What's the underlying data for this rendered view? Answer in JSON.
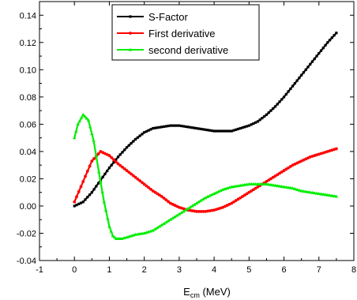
{
  "chart_data": {
    "type": "line",
    "title": "",
    "xlabel": "E",
    "xlabel_sub": "cm",
    "xlabel_unit": " (MeV)",
    "ylabel": "",
    "xlim": [
      -1,
      8
    ],
    "ylim": [
      -0.04,
      0.15
    ],
    "x_ticks": [
      -1,
      0,
      1,
      2,
      3,
      4,
      5,
      6,
      7,
      8
    ],
    "y_ticks": [
      -0.04,
      -0.02,
      0.0,
      0.02,
      0.04,
      0.06,
      0.08,
      0.1,
      0.12,
      0.14
    ],
    "x_tick_labels": [
      "-1",
      "0",
      "1",
      "2",
      "3",
      "4",
      "5",
      "6",
      "7",
      "8"
    ],
    "y_tick_labels": [
      "-0.04",
      "-0.02",
      "0.00",
      "0.02",
      "0.04",
      "0.06",
      "0.08",
      "0.10",
      "0.12",
      "0.14"
    ],
    "grid": false,
    "legend_position": "top-center",
    "series": [
      {
        "name": "S-Factor",
        "color": "#000000",
        "marker": "square",
        "x": [
          0,
          0.25,
          0.5,
          0.75,
          1.0,
          1.25,
          1.5,
          1.75,
          2.0,
          2.25,
          2.5,
          2.75,
          3.0,
          3.25,
          3.5,
          3.75,
          4.0,
          4.25,
          4.5,
          4.75,
          5.0,
          5.25,
          5.5,
          5.75,
          6.0,
          6.25,
          6.5,
          6.75,
          7.0,
          7.25,
          7.5
        ],
        "y": [
          0.0,
          0.003,
          0.01,
          0.019,
          0.028,
          0.036,
          0.043,
          0.049,
          0.054,
          0.057,
          0.058,
          0.059,
          0.059,
          0.058,
          0.057,
          0.056,
          0.055,
          0.055,
          0.055,
          0.057,
          0.059,
          0.062,
          0.067,
          0.073,
          0.08,
          0.088,
          0.096,
          0.104,
          0.112,
          0.12,
          0.127
        ]
      },
      {
        "name": "First derivative",
        "color": "#ff0000",
        "marker": "circle",
        "x": [
          0,
          0.25,
          0.5,
          0.75,
          1.0,
          1.25,
          1.5,
          1.75,
          2.0,
          2.25,
          2.5,
          2.75,
          3.0,
          3.25,
          3.5,
          3.75,
          4.0,
          4.25,
          4.5,
          4.75,
          5.0,
          5.25,
          5.5,
          5.75,
          6.0,
          6.25,
          6.5,
          6.75,
          7.0,
          7.25,
          7.5
        ],
        "y": [
          0.003,
          0.018,
          0.033,
          0.04,
          0.037,
          0.031,
          0.026,
          0.021,
          0.016,
          0.011,
          0.007,
          0.002,
          -0.001,
          -0.003,
          -0.004,
          -0.004,
          -0.003,
          -0.001,
          0.002,
          0.006,
          0.01,
          0.014,
          0.018,
          0.022,
          0.026,
          0.03,
          0.033,
          0.036,
          0.038,
          0.04,
          0.042
        ]
      },
      {
        "name": "second derivative",
        "color": "#00ee00",
        "marker": "triangle",
        "x": [
          0,
          0.1,
          0.25,
          0.4,
          0.55,
          0.7,
          0.85,
          1.0,
          1.1,
          1.2,
          1.35,
          1.5,
          1.75,
          2.0,
          2.25,
          2.5,
          2.75,
          3.0,
          3.25,
          3.5,
          3.75,
          4.0,
          4.25,
          4.5,
          4.75,
          5.0,
          5.25,
          5.5,
          5.75,
          6.0,
          6.25,
          6.5,
          6.75,
          7.0,
          7.25,
          7.5
        ],
        "y": [
          0.05,
          0.06,
          0.067,
          0.063,
          0.048,
          0.025,
          0.003,
          -0.015,
          -0.022,
          -0.024,
          -0.024,
          -0.023,
          -0.021,
          -0.02,
          -0.018,
          -0.014,
          -0.01,
          -0.006,
          -0.002,
          0.002,
          0.006,
          0.009,
          0.012,
          0.014,
          0.015,
          0.016,
          0.016,
          0.016,
          0.015,
          0.014,
          0.013,
          0.011,
          0.01,
          0.009,
          0.008,
          0.007
        ]
      }
    ]
  }
}
